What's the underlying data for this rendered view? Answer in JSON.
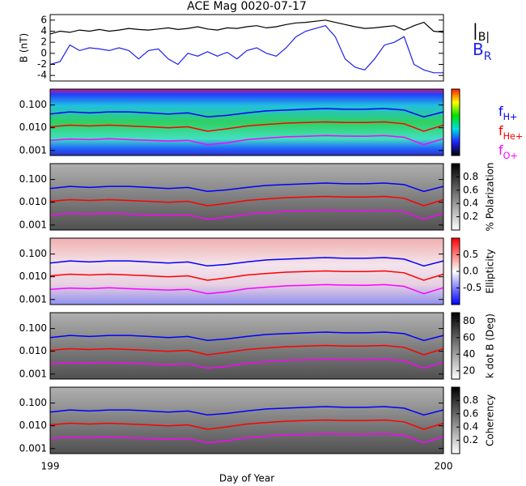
{
  "chart_data": [
    {
      "type": "line",
      "title": "ACE Mag 0020-07-17",
      "ylabel": "B (nT)",
      "xlim": [
        199,
        200
      ],
      "ylim": [
        -5,
        7
      ],
      "yticks": [
        -4,
        -2,
        0,
        2,
        4,
        6
      ],
      "x": [
        199,
        199.025,
        199.05,
        199.075,
        199.1,
        199.125,
        199.15,
        199.175,
        199.2,
        199.225,
        199.25,
        199.275,
        199.3,
        199.325,
        199.35,
        199.375,
        199.4,
        199.425,
        199.45,
        199.475,
        199.5,
        199.525,
        199.55,
        199.575,
        199.6,
        199.625,
        199.65,
        199.675,
        199.7,
        199.725,
        199.75,
        199.775,
        199.8,
        199.825,
        199.85,
        199.875,
        199.9,
        199.925,
        199.95,
        199.975,
        200
      ],
      "series": [
        {
          "name": "|B|",
          "color": "#000000",
          "values": [
            3.5,
            4,
            3.8,
            4.2,
            4,
            4.3,
            4,
            4.2,
            4.5,
            4.3,
            4.2,
            4.4,
            4.6,
            4.3,
            4.5,
            4.8,
            4.4,
            4.2,
            4.6,
            4.5,
            4.8,
            5,
            4.6,
            4.8,
            5.2,
            5.5,
            5.6,
            5.8,
            6,
            5.6,
            5.2,
            4.8,
            4.5,
            4.6,
            4.8,
            5,
            4.2,
            5,
            5.6,
            4,
            3.8
          ]
        },
        {
          "name": "BR",
          "color": "#2020ee",
          "values": [
            -2,
            -1.5,
            1.5,
            0.5,
            1,
            0.8,
            0.5,
            1,
            0.5,
            -1,
            0.5,
            0.8,
            -1,
            -2,
            0,
            -0.5,
            0.3,
            -0.5,
            0.2,
            -1,
            0.5,
            1,
            0,
            -0.5,
            1,
            3,
            4,
            4.5,
            5,
            3,
            -1,
            -2.5,
            -3,
            -1,
            1.5,
            2,
            3,
            -2,
            -3,
            -3.5,
            -3.5
          ]
        }
      ]
    },
    {
      "type": "spectrogram",
      "colorscale": "rainbow",
      "xlim": [
        199,
        200
      ],
      "ylog": true,
      "ylim": [
        0.0006,
        0.5
      ],
      "yticks": [
        {
          "value": 0.001,
          "label": "0.001"
        },
        {
          "value": 0.01,
          "label": "0.010"
        },
        {
          "value": 0.1,
          "label": "0.100"
        }
      ],
      "x": [
        199,
        199.05,
        199.1,
        199.15,
        199.2,
        199.25,
        199.3,
        199.35,
        199.4,
        199.45,
        199.5,
        199.55,
        199.6,
        199.65,
        199.7,
        199.75,
        199.8,
        199.85,
        199.9,
        199.95,
        200
      ],
      "series": [
        {
          "name": "fH+",
          "color": "#0000ff",
          "values": [
            0.04,
            0.05,
            0.045,
            0.05,
            0.05,
            0.045,
            0.04,
            0.045,
            0.03,
            0.035,
            0.045,
            0.055,
            0.06,
            0.065,
            0.07,
            0.065,
            0.065,
            0.07,
            0.06,
            0.03,
            0.05
          ]
        },
        {
          "name": "fHe+",
          "color": "#ff0000",
          "values": [
            0.011,
            0.013,
            0.012,
            0.013,
            0.012,
            0.011,
            0.01,
            0.011,
            0.007,
            0.009,
            0.012,
            0.014,
            0.016,
            0.017,
            0.018,
            0.017,
            0.017,
            0.018,
            0.015,
            0.007,
            0.013
          ]
        },
        {
          "name": "fO+",
          "color": "#ff00ff",
          "values": [
            0.0028,
            0.0032,
            0.003,
            0.0033,
            0.003,
            0.0028,
            0.0026,
            0.0028,
            0.0018,
            0.0022,
            0.003,
            0.0035,
            0.004,
            0.0042,
            0.0045,
            0.0043,
            0.0042,
            0.0045,
            0.0038,
            0.0018,
            0.0033
          ]
        }
      ]
    },
    {
      "type": "spectrogram",
      "colorscale": "gray",
      "colorbar_label": "% Polarization",
      "zlim": [
        0,
        1
      ],
      "zticks": [
        0.2,
        0.4,
        0.6,
        0.8
      ],
      "xlim": [
        199,
        200
      ],
      "ylog": true,
      "ylim": [
        0.0006,
        0.5
      ],
      "yticks": [
        {
          "value": 0.001,
          "label": "0.001"
        },
        {
          "value": 0.01,
          "label": "0.010"
        },
        {
          "value": 0.1,
          "label": "0.100"
        }
      ]
    },
    {
      "type": "spectrogram",
      "colorscale": "redblue",
      "colorbar_label": "Ellipticity",
      "zlim": [
        -1,
        1
      ],
      "zticks": [
        -0.5,
        {
          "value": 0,
          "label": "0.0"
        },
        0.5
      ],
      "xlim": [
        199,
        200
      ],
      "ylog": true,
      "ylim": [
        0.0006,
        0.5
      ],
      "yticks": [
        {
          "value": 0.001,
          "label": "0.001"
        },
        {
          "value": 0.01,
          "label": "0.010"
        },
        {
          "value": 0.1,
          "label": "0.100"
        }
      ]
    },
    {
      "type": "spectrogram",
      "colorscale": "gray",
      "colorbar_label": "k dot B (Deg)",
      "zlim": [
        10,
        90
      ],
      "zticks": [
        20,
        40,
        60,
        80
      ],
      "xlim": [
        199,
        200
      ],
      "ylog": true,
      "ylim": [
        0.0006,
        0.5
      ],
      "yticks": [
        {
          "value": 0.001,
          "label": "0.001"
        },
        {
          "value": 0.01,
          "label": "0.010"
        },
        {
          "value": 0.1,
          "label": "0.100"
        }
      ]
    },
    {
      "type": "spectrogram",
      "colorscale": "gray",
      "colorbar_label": "Coherency",
      "zlim": [
        0,
        1
      ],
      "zticks": [
        0.2,
        0.4,
        0.6,
        0.8
      ],
      "xlim": [
        199,
        200
      ],
      "ylog": true,
      "ylim": [
        0.0006,
        0.5
      ],
      "yticks": [
        {
          "value": 0.001,
          "label": "0.001"
        },
        {
          "value": 0.01,
          "label": "0.010"
        },
        {
          "value": 0.1,
          "label": "0.100"
        }
      ],
      "xlabel": "Day of Year",
      "xticks": [
        199,
        200
      ]
    }
  ]
}
